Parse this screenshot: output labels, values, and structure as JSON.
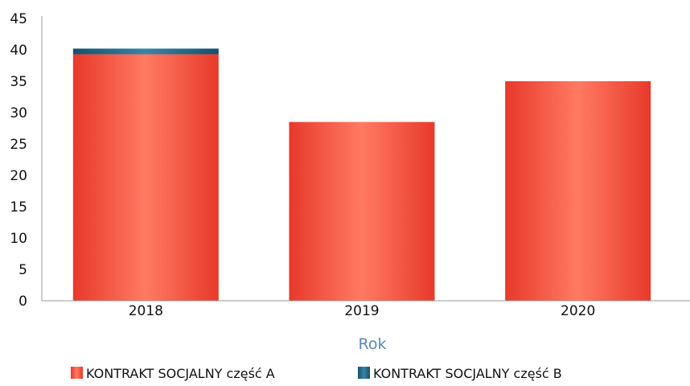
{
  "chart_data": {
    "type": "bar",
    "stacked": true,
    "categories": [
      "2018",
      "2019",
      "2020"
    ],
    "series": [
      {
        "name": "KONTRAKT SOCJALNY część A",
        "values": [
          39.3,
          28.5,
          35
        ],
        "color": "#f04a3c"
      },
      {
        "name": "KONTRAKT SOCJALNY część B",
        "values": [
          0.9,
          0,
          0
        ],
        "color": "#1f5f80"
      }
    ],
    "xlabel": "Rok",
    "xlabel_color": "#5a88b8",
    "ylabel": "",
    "ylim": [
      0,
      45
    ],
    "yticks": [
      0,
      5,
      10,
      15,
      20,
      25,
      30,
      35,
      40,
      45
    ],
    "grid": false,
    "legend_position": "bottom"
  }
}
